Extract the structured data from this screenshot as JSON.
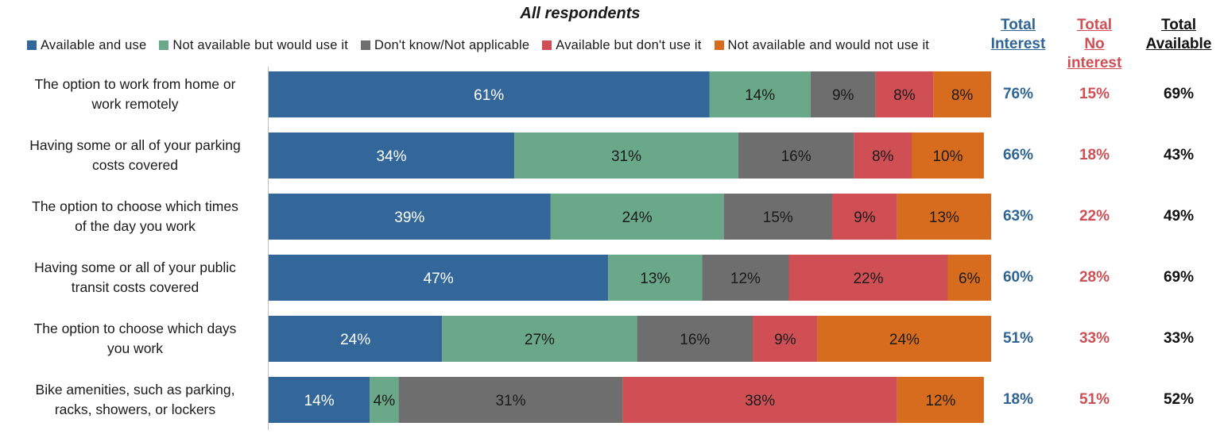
{
  "chart_data": {
    "type": "bar",
    "orientation": "horizontal",
    "stacked": true,
    "title": "All respondents",
    "categories": [
      "The option to work from home or work remotely",
      "Having some or all of your parking costs covered",
      "The option to choose which times of the day you work",
      "Having some or all of your public transit costs covered",
      "The option to choose which days you work",
      "Bike amenities, such as parking, racks, showers, or lockers"
    ],
    "category_lines": [
      [
        "The option to work from home or",
        "work remotely"
      ],
      [
        "Having some or all of your parking",
        "costs covered"
      ],
      [
        "The option to choose which times",
        "of the day you work"
      ],
      [
        "Having some or all of your public",
        "transit costs covered"
      ],
      [
        "The option to choose which days",
        "you work"
      ],
      [
        "Bike amenities, such as parking,",
        "racks, showers, or lockers"
      ]
    ],
    "series": [
      {
        "name": "Available and use",
        "color": "#336699",
        "label_color": "#ffffff",
        "values": [
          61,
          34,
          39,
          47,
          24,
          14
        ]
      },
      {
        "name": "Not available but would use it",
        "color": "#6aa88a",
        "label_color": "#1a1a1a",
        "values": [
          14,
          31,
          24,
          13,
          27,
          4
        ]
      },
      {
        "name": "Don't know/Not applicable",
        "color": "#6e6e6e",
        "label_color": "#1a1a1a",
        "values": [
          9,
          16,
          15,
          12,
          16,
          31
        ]
      },
      {
        "name": "Available but don't use it",
        "color": "#cf4f55",
        "label_color": "#1a1a1a",
        "values": [
          8,
          8,
          9,
          22,
          9,
          38
        ]
      },
      {
        "name": "Not available and would not use it",
        "color": "#d86c1e",
        "label_color": "#1a1a1a",
        "values": [
          8,
          10,
          13,
          6,
          24,
          12
        ]
      }
    ],
    "legend_position": "top",
    "xlim": [
      0,
      100
    ],
    "grid": false,
    "totals": {
      "headers": {
        "interest": [
          "Total",
          "Interest"
        ],
        "no_interest": [
          "Total",
          "No interest"
        ],
        "available": [
          "Total",
          "Available"
        ]
      },
      "interest": [
        "76%",
        "66%",
        "63%",
        "60%",
        "51%",
        "18%"
      ],
      "no_interest": [
        "15%",
        "18%",
        "22%",
        "28%",
        "33%",
        "51%"
      ],
      "available": [
        "69%",
        "43%",
        "49%",
        "69%",
        "33%",
        "52%"
      ]
    }
  }
}
